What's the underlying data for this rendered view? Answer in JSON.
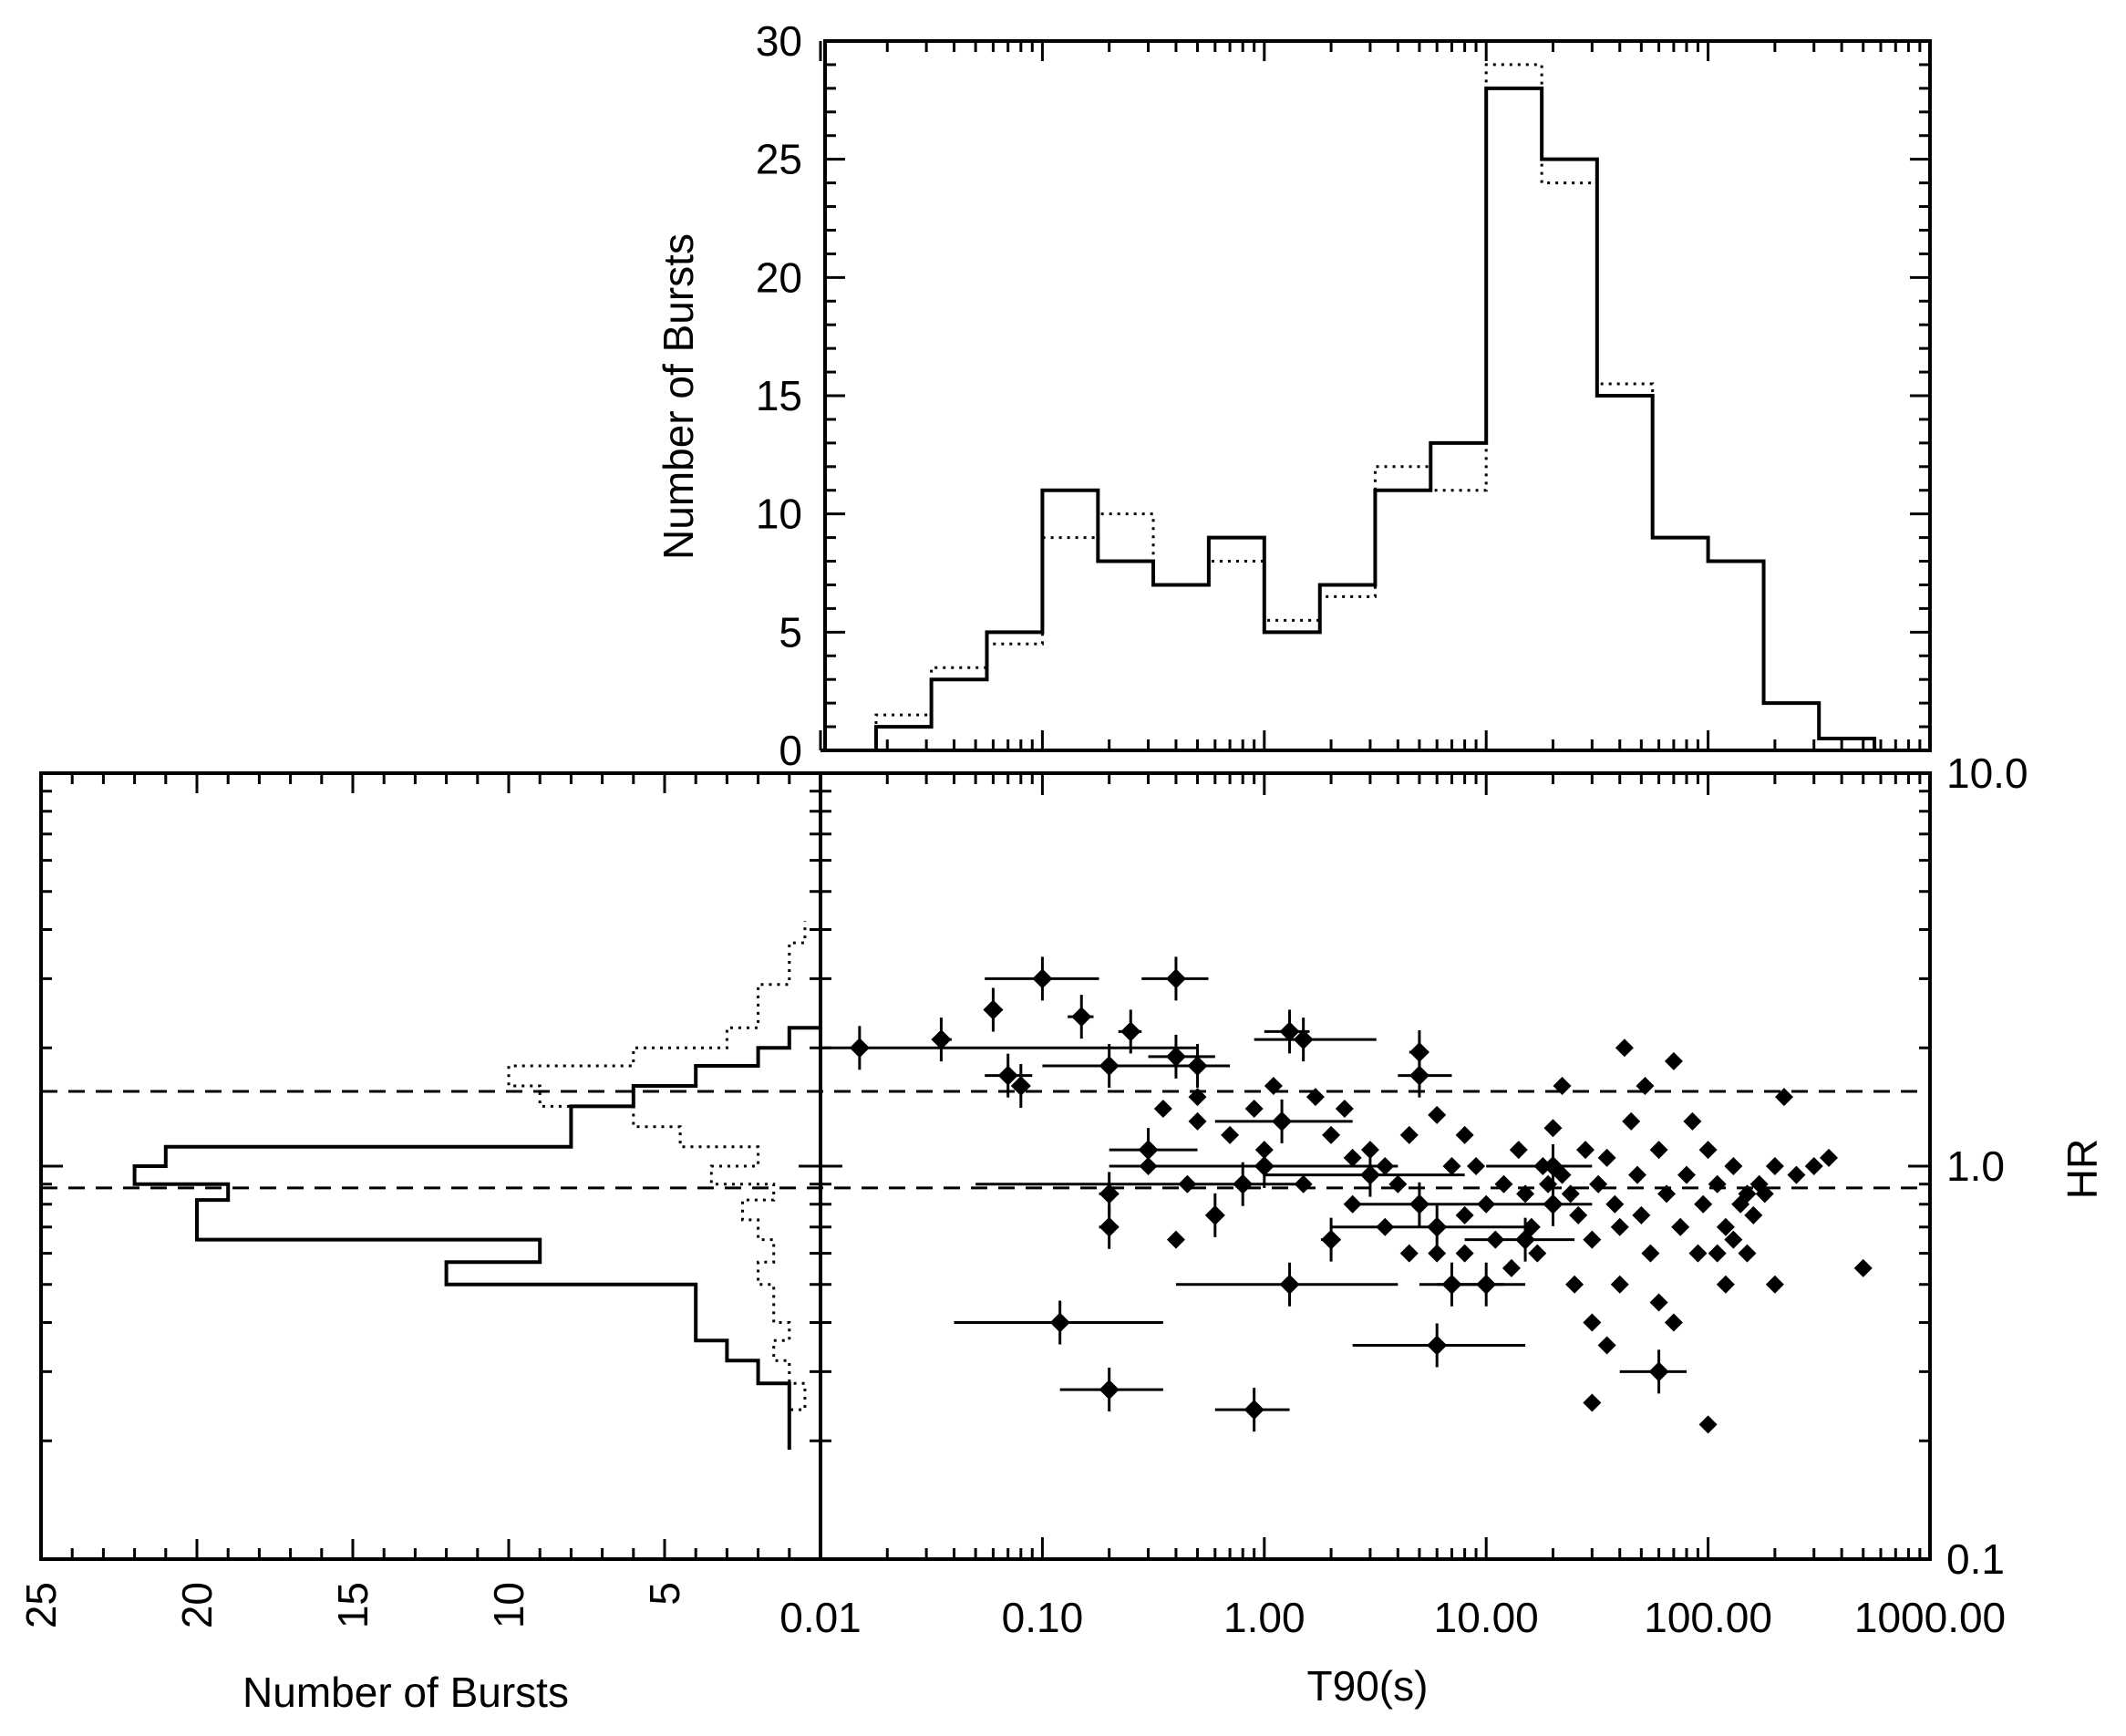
{
  "chart_data": [
    {
      "panel": "top",
      "type": "histogram",
      "ylabel": "Number of Bursts",
      "xscale": "log",
      "xlim": [
        0.01,
        1000.0
      ],
      "ylim": [
        0,
        30
      ],
      "ytick_labels": [
        "0",
        "5",
        "10",
        "15",
        "20",
        "25",
        "30"
      ],
      "bin_edges": [
        0.01,
        0.0178,
        0.0316,
        0.0562,
        0.1,
        0.178,
        0.316,
        0.562,
        1.0,
        1.78,
        3.16,
        5.62,
        10.0,
        17.8,
        31.6,
        56.2,
        100.0,
        178,
        316,
        562,
        1000
      ],
      "series": [
        {
          "name": "solid",
          "style": "solid",
          "values": [
            0,
            1,
            3,
            5,
            11,
            8,
            7,
            9,
            5,
            7,
            11,
            13,
            28,
            25,
            15,
            9,
            8,
            2,
            0.5,
            0
          ]
        },
        {
          "name": "dotted",
          "style": "dotted",
          "values": [
            0,
            1.5,
            3.5,
            4.5,
            9,
            10,
            7,
            8,
            5.5,
            6.5,
            12,
            11,
            29,
            24,
            15.5,
            9,
            8,
            2,
            0.5,
            0
          ]
        }
      ]
    },
    {
      "panel": "scatter",
      "type": "scatter",
      "xlabel": "T90(s)",
      "ylabel": "HR",
      "xscale": "log",
      "yscale": "log",
      "xlim": [
        0.01,
        1000.0
      ],
      "ylim": [
        0.1,
        10.0
      ],
      "xtick_labels": [
        "0.01",
        "0.10",
        "1.00",
        "10.00",
        "100.00",
        "1000.00"
      ],
      "ytick_labels": [
        "0.1",
        "1.0",
        "10.0"
      ],
      "dashed_lines_hr": [
        1.55,
        0.88
      ],
      "points_with_errors": [
        [
          0.1,
          3.0,
          0.055,
          0.18
        ],
        [
          0.4,
          3.0,
          0.28,
          0.56
        ],
        [
          0.035,
          2.1,
          0.032,
          0.039
        ],
        [
          0.06,
          2.5,
          0.055,
          0.066
        ],
        [
          0.07,
          1.7,
          0.055,
          0.09
        ],
        [
          0.08,
          1.6,
          0.075,
          0.085
        ],
        [
          0.15,
          2.4,
          0.13,
          0.17
        ],
        [
          0.25,
          2.2,
          0.22,
          0.28
        ],
        [
          0.2,
          1.8,
          0.1,
          0.35
        ],
        [
          0.4,
          1.9,
          0.3,
          0.6
        ],
        [
          0.015,
          2.0,
          0.01,
          0.5
        ],
        [
          1.3,
          2.2,
          1.0,
          1.6
        ],
        [
          1.5,
          2.1,
          0.9,
          3.2
        ],
        [
          1.2,
          1.3,
          0.6,
          2.5
        ],
        [
          1.0,
          1.0,
          0.2,
          4.0
        ],
        [
          0.2,
          0.85,
          0.18,
          0.22
        ],
        [
          0.2,
          0.7,
          0.18,
          0.22
        ],
        [
          0.6,
          0.75,
          0.55,
          0.65
        ],
        [
          1.3,
          0.5,
          0.4,
          4.0
        ],
        [
          2.0,
          0.65,
          1.8,
          2.2
        ],
        [
          0.12,
          0.4,
          0.04,
          0.35
        ],
        [
          0.2,
          0.27,
          0.12,
          0.35
        ],
        [
          0.9,
          0.24,
          0.6,
          1.3
        ],
        [
          6.0,
          0.35,
          2.5,
          15.0
        ],
        [
          5.0,
          1.95,
          4.5,
          5.5
        ],
        [
          5.0,
          1.7,
          4.0,
          7.0
        ],
        [
          7.0,
          0.5,
          5.0,
          12.0
        ],
        [
          10.0,
          0.5,
          6.0,
          15.0
        ],
        [
          6.0,
          0.7,
          2.0,
          15.0
        ],
        [
          5.0,
          0.8,
          2.5,
          10.0
        ],
        [
          3.0,
          0.95,
          1.0,
          8.0
        ],
        [
          0.8,
          0.9,
          0.05,
          1.5
        ],
        [
          20.0,
          1.0,
          10.0,
          30.0
        ],
        [
          20.0,
          0.8,
          10.0,
          30.0
        ],
        [
          15.0,
          0.65,
          8.0,
          25.0
        ],
        [
          60.0,
          0.3,
          40.0,
          80.0
        ],
        [
          0.3,
          1.1,
          0.2,
          0.5
        ],
        [
          0.5,
          1.8,
          0.3,
          0.7
        ]
      ],
      "points": [
        [
          0.35,
          1.4
        ],
        [
          0.5,
          1.3
        ],
        [
          0.3,
          1.0
        ],
        [
          0.45,
          0.9
        ],
        [
          0.7,
          1.2
        ],
        [
          0.9,
          1.4
        ],
        [
          1.1,
          1.6
        ],
        [
          1.7,
          1.5
        ],
        [
          2.3,
          1.4
        ],
        [
          2.0,
          1.2
        ],
        [
          2.5,
          1.05
        ],
        [
          3.0,
          1.1
        ],
        [
          3.5,
          1.0
        ],
        [
          4.0,
          0.9
        ],
        [
          4.5,
          1.2
        ],
        [
          6.0,
          1.35
        ],
        [
          8.0,
          1.2
        ],
        [
          9.0,
          1.0
        ],
        [
          8.0,
          0.75
        ],
        [
          10.0,
          0.8
        ],
        [
          12.0,
          0.9
        ],
        [
          14.0,
          1.1
        ],
        [
          15.0,
          0.85
        ],
        [
          16.0,
          0.7
        ],
        [
          18.0,
          1.0
        ],
        [
          20.0,
          1.25
        ],
        [
          22.0,
          1.6
        ],
        [
          22.0,
          0.95
        ],
        [
          24.0,
          0.85
        ],
        [
          26.0,
          0.75
        ],
        [
          28.0,
          1.1
        ],
        [
          30.0,
          0.65
        ],
        [
          32.0,
          0.9
        ],
        [
          35.0,
          1.05
        ],
        [
          38.0,
          0.8
        ],
        [
          40.0,
          0.7
        ],
        [
          42.0,
          2.0
        ],
        [
          45.0,
          1.3
        ],
        [
          48.0,
          0.95
        ],
        [
          50.0,
          0.75
        ],
        [
          52.0,
          1.6
        ],
        [
          55.0,
          0.6
        ],
        [
          60.0,
          1.1
        ],
        [
          65.0,
          0.85
        ],
        [
          70.0,
          1.85
        ],
        [
          75.0,
          0.7
        ],
        [
          80.0,
          0.95
        ],
        [
          85.0,
          1.3
        ],
        [
          90.0,
          0.6
        ],
        [
          95.0,
          0.8
        ],
        [
          100.0,
          1.1
        ],
        [
          110.0,
          0.9
        ],
        [
          120.0,
          0.7
        ],
        [
          130.0,
          1.0
        ],
        [
          150.0,
          0.85
        ],
        [
          170.0,
          0.9
        ],
        [
          200.0,
          1.0
        ],
        [
          200.0,
          0.5
        ],
        [
          220.0,
          1.5
        ],
        [
          250.0,
          0.95
        ],
        [
          300.0,
          1.0
        ],
        [
          350.0,
          1.05
        ],
        [
          500.0,
          0.55
        ],
        [
          30.0,
          0.4
        ],
        [
          35.0,
          0.35
        ],
        [
          40.0,
          0.5
        ],
        [
          60.0,
          0.45
        ],
        [
          25.0,
          0.5
        ],
        [
          30.0,
          0.25
        ],
        [
          100.0,
          0.22
        ],
        [
          70.0,
          0.4
        ],
        [
          120.0,
          0.5
        ],
        [
          110.0,
          0.6
        ],
        [
          150.0,
          0.6
        ],
        [
          140.0,
          0.8
        ],
        [
          180.0,
          0.85
        ],
        [
          160.0,
          0.75
        ],
        [
          130.0,
          0.65
        ],
        [
          0.4,
          0.65
        ],
        [
          0.5,
          1.5
        ],
        [
          1.0,
          1.1
        ],
        [
          1.5,
          0.9
        ],
        [
          2.5,
          0.8
        ],
        [
          3.5,
          0.7
        ],
        [
          4.5,
          0.6
        ],
        [
          6.0,
          0.6
        ],
        [
          7.0,
          1.0
        ],
        [
          8.0,
          0.6
        ],
        [
          11.0,
          0.65
        ],
        [
          13.0,
          0.55
        ],
        [
          17.0,
          0.6
        ],
        [
          19.0,
          0.9
        ]
      ]
    },
    {
      "panel": "left",
      "type": "histogram",
      "orientation": "horizontal",
      "xlabel": "Number of Bursts",
      "xtick_labels": [
        "25",
        "20",
        "15",
        "10",
        "5"
      ],
      "xlim": [
        25,
        0
      ],
      "hr_bin_edges": [
        0.19,
        0.21,
        0.24,
        0.28,
        0.32,
        0.36,
        0.4,
        0.44,
        0.5,
        0.57,
        0.65,
        0.73,
        0.82,
        0.9,
        1.0,
        1.12,
        1.26,
        1.42,
        1.6,
        1.8,
        2.0,
        2.25,
        2.55,
        2.9,
        3.3,
        3.7,
        4.2
      ],
      "series": [
        {
          "name": "solid",
          "style": "solid",
          "values": [
            1,
            1,
            1,
            2,
            3,
            4,
            4,
            4,
            12,
            9,
            20,
            20,
            19,
            22,
            21,
            8,
            8,
            6,
            4,
            2,
            1,
            0,
            0,
            0,
            0,
            0
          ]
        },
        {
          "name": "dotted",
          "style": "dotted",
          "values": [
            1,
            1,
            0.5,
            1,
            1.5,
            1,
            1.5,
            1.5,
            2,
            1.5,
            2,
            2.5,
            1.5,
            3.5,
            2,
            4.5,
            6,
            9,
            10,
            6,
            3,
            2,
            2,
            1,
            1,
            0.5
          ]
        }
      ]
    }
  ]
}
